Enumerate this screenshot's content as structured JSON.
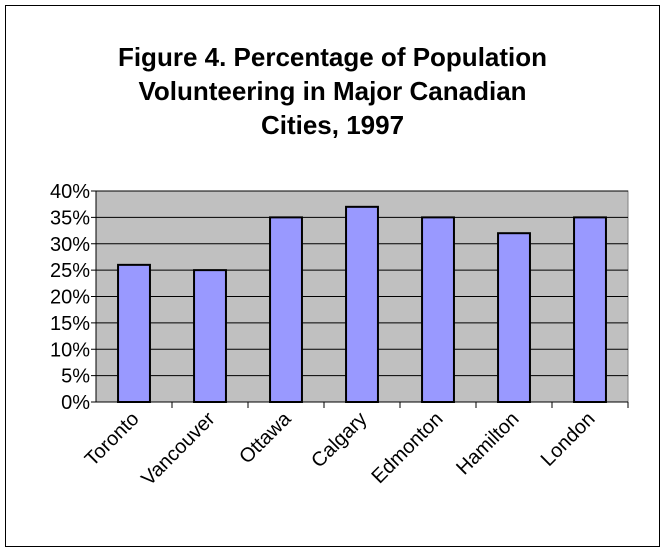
{
  "chart_data": {
    "type": "bar",
    "title_lines": [
      "Figure 4. Percentage of Population",
      "Volunteering in Major Canadian",
      "Cities, 1997"
    ],
    "categories": [
      "Toronto",
      "Vancouver",
      "Ottawa",
      "Calgary",
      "Edmonton",
      "Hamilton",
      "London"
    ],
    "values": [
      26,
      25,
      35,
      37,
      35,
      32,
      35
    ],
    "ylim": [
      0,
      40
    ],
    "yticks": [
      "0%",
      "5%",
      "10%",
      "15%",
      "20%",
      "25%",
      "30%",
      "35%",
      "40%"
    ],
    "grid": true,
    "colors": {
      "bar": "#9999ff",
      "plot_bg": "#c0c0c0",
      "grid": "#000000"
    }
  }
}
